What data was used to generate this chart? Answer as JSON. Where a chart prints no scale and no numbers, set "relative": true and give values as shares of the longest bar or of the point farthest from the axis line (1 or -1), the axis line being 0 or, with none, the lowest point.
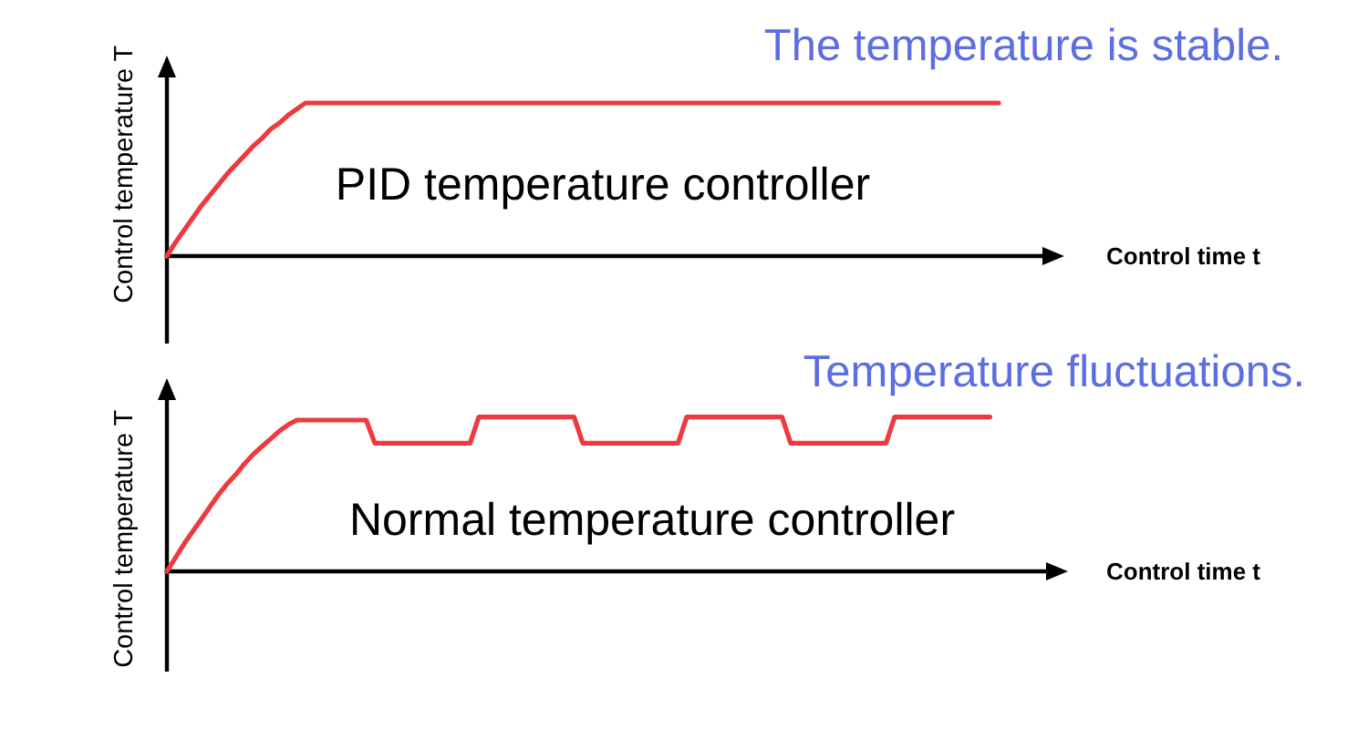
{
  "chart_data": [
    {
      "type": "line",
      "title": "PID temperature controller",
      "xlabel": "Control time t",
      "ylabel": "Control temperature T",
      "annotations": [
        "The temperature is stable."
      ],
      "relative": true,
      "categories": [
        null,
        null,
        null,
        null,
        null,
        null,
        null,
        null,
        null,
        null,
        null,
        null,
        null,
        null,
        null,
        null,
        null,
        null,
        null,
        null,
        null,
        null,
        null,
        null,
        null,
        null,
        null,
        null,
        null,
        null,
        null,
        null,
        null,
        null,
        null,
        null,
        null,
        null,
        null,
        null,
        null,
        null,
        null,
        null,
        null,
        null,
        null,
        null,
        null,
        null,
        null,
        null,
        null,
        null,
        null,
        null,
        null,
        null,
        null,
        null,
        null,
        null,
        null,
        null,
        null,
        null,
        null,
        null,
        null,
        null,
        null,
        null,
        null,
        null,
        null,
        null,
        null,
        null,
        null,
        null,
        null,
        null,
        null,
        null,
        null,
        null,
        null,
        null,
        null,
        null,
        null,
        null,
        null,
        null,
        null,
        null,
        null
      ],
      "series": [
        {
          "color": "#ee3a3f",
          "values": [
            0,
            0.09,
            0.17,
            0.25,
            0.33,
            0.4,
            0.47,
            0.54,
            0.6,
            0.66,
            0.72,
            0.77,
            0.83,
            0.87,
            0.92,
            0.96,
            1,
            1,
            1,
            1,
            1,
            1,
            1,
            1,
            1,
            1,
            1,
            1,
            1,
            1,
            1,
            1,
            1,
            1,
            1,
            1,
            1,
            1,
            1,
            1,
            1,
            1,
            1,
            1,
            1,
            1,
            1,
            1,
            1,
            1,
            1,
            1,
            1,
            1,
            1,
            1,
            1,
            1,
            1,
            1,
            1,
            1,
            1,
            1,
            1,
            1,
            1,
            1,
            1,
            1,
            1,
            1,
            1,
            1,
            1,
            1,
            1,
            1,
            1,
            1,
            1,
            1,
            1,
            1,
            1,
            1,
            1,
            1,
            1,
            1,
            1,
            1,
            1,
            1,
            1,
            1,
            1
          ]
        }
      ]
    },
    {
      "type": "line",
      "title": "Normal temperature controller",
      "xlabel": "Control time t",
      "ylabel": "Control temperature T",
      "annotations": [
        "Temperature fluctuations."
      ],
      "relative": true,
      "categories": [
        null,
        null,
        null,
        null,
        null,
        null,
        null,
        null,
        null,
        null,
        null,
        null,
        null,
        null,
        null,
        null,
        null,
        null,
        null,
        null,
        null,
        null,
        null,
        null,
        null,
        null,
        null,
        null,
        null,
        null,
        null,
        null,
        null,
        null,
        null,
        null,
        null,
        null,
        null,
        null,
        null,
        null,
        null,
        null,
        null,
        null,
        null,
        null,
        null,
        null,
        null,
        null,
        null,
        null,
        null,
        null,
        null,
        null,
        null,
        null,
        null,
        null,
        null,
        null,
        null,
        null,
        null,
        null,
        null,
        null,
        null,
        null,
        null,
        null,
        null,
        null,
        null,
        null,
        null,
        null,
        null,
        null,
        null,
        null,
        null,
        null,
        null,
        null,
        null,
        null,
        null,
        null,
        null,
        null,
        null,
        null
      ],
      "series": [
        {
          "color": "#ee3a3f",
          "values": [
            0,
            0.09,
            0.18,
            0.26,
            0.34,
            0.42,
            0.5,
            0.57,
            0.63,
            0.7,
            0.76,
            0.81,
            0.86,
            0.91,
            0.95,
            0.98,
            0.98,
            0.98,
            0.98,
            0.98,
            0.98,
            0.98,
            0.98,
            0.98,
            0.83,
            0.83,
            0.83,
            0.83,
            0.83,
            0.83,
            0.83,
            0.83,
            0.83,
            0.83,
            0.83,
            0.83,
            1,
            1,
            1,
            1,
            1,
            1,
            1,
            1,
            1,
            1,
            1,
            1,
            0.83,
            0.83,
            0.83,
            0.83,
            0.83,
            0.83,
            0.83,
            0.83,
            0.83,
            0.83,
            0.83,
            0.83,
            1,
            1,
            1,
            1,
            1,
            1,
            1,
            1,
            1,
            1,
            1,
            1,
            0.83,
            0.83,
            0.83,
            0.83,
            0.83,
            0.83,
            0.83,
            0.83,
            0.83,
            0.83,
            0.83,
            0.83,
            1,
            1,
            1,
            1,
            1,
            1,
            1,
            1,
            1,
            1,
            1,
            1
          ]
        }
      ]
    }
  ]
}
